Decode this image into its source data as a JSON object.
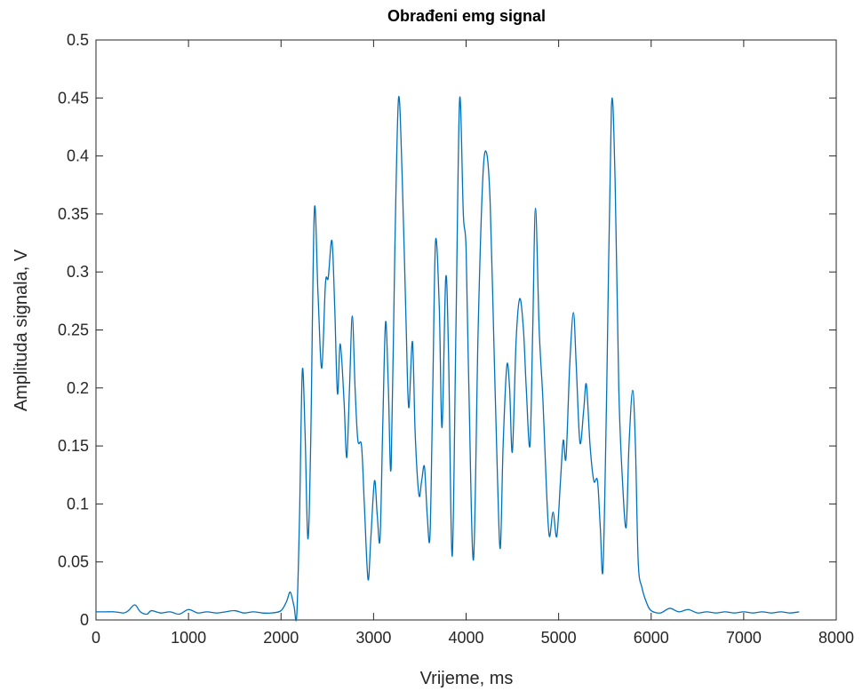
{
  "chart_data": {
    "type": "line",
    "title": "Obrađeni emg signal",
    "xlabel": "Vrijeme, ms",
    "ylabel": "Amplituda signala, V",
    "xlim": [
      0,
      8000
    ],
    "ylim": [
      0,
      0.5
    ],
    "xticks": [
      0,
      1000,
      2000,
      3000,
      4000,
      5000,
      6000,
      7000,
      8000
    ],
    "yticks": [
      0,
      0.05,
      0.1,
      0.15,
      0.2,
      0.25,
      0.3,
      0.35,
      0.4,
      0.45,
      0.5
    ],
    "grid": false,
    "series": [
      {
        "name": "emg",
        "color": "#0072bd",
        "x": [
          0,
          100,
          200,
          300,
          350,
          420,
          480,
          550,
          600,
          700,
          800,
          900,
          1000,
          1100,
          1200,
          1300,
          1400,
          1500,
          1600,
          1700,
          1800,
          1900,
          2000,
          2060,
          2100,
          2140,
          2170,
          2200,
          2230,
          2260,
          2290,
          2320,
          2360,
          2400,
          2440,
          2480,
          2510,
          2550,
          2580,
          2610,
          2640,
          2680,
          2710,
          2740,
          2770,
          2800,
          2830,
          2870,
          2900,
          2940,
          2970,
          3010,
          3040,
          3070,
          3100,
          3130,
          3160,
          3190,
          3230,
          3270,
          3310,
          3350,
          3380,
          3420,
          3450,
          3490,
          3520,
          3550,
          3580,
          3610,
          3640,
          3670,
          3710,
          3740,
          3780,
          3810,
          3850,
          3890,
          3930,
          3970,
          4000,
          4030,
          4080,
          4130,
          4180,
          4220,
          4260,
          4300,
          4340,
          4370,
          4400,
          4440,
          4470,
          4500,
          4540,
          4580,
          4620,
          4650,
          4690,
          4720,
          4750,
          4790,
          4830,
          4870,
          4900,
          4940,
          4980,
          5020,
          5050,
          5080,
          5120,
          5160,
          5190,
          5230,
          5270,
          5300,
          5340,
          5380,
          5420,
          5450,
          5480,
          5520,
          5570,
          5610,
          5650,
          5690,
          5730,
          5760,
          5800,
          5830,
          5860,
          5900,
          5950,
          6000,
          6100,
          6200,
          6300,
          6400,
          6500,
          6600,
          6700,
          6800,
          6900,
          7000,
          7100,
          7200,
          7300,
          7400,
          7500,
          7600
        ],
        "values": [
          0.007,
          0.007,
          0.007,
          0.006,
          0.008,
          0.013,
          0.007,
          0.005,
          0.008,
          0.006,
          0.007,
          0.005,
          0.009,
          0.006,
          0.007,
          0.006,
          0.007,
          0.008,
          0.006,
          0.007,
          0.006,
          0.006,
          0.008,
          0.016,
          0.024,
          0.012,
          0.004,
          0.09,
          0.215,
          0.16,
          0.07,
          0.15,
          0.353,
          0.28,
          0.217,
          0.29,
          0.295,
          0.327,
          0.27,
          0.195,
          0.238,
          0.19,
          0.14,
          0.2,
          0.262,
          0.2,
          0.155,
          0.15,
          0.1,
          0.035,
          0.07,
          0.12,
          0.09,
          0.07,
          0.17,
          0.257,
          0.2,
          0.132,
          0.32,
          0.45,
          0.38,
          0.26,
          0.183,
          0.24,
          0.16,
          0.108,
          0.12,
          0.132,
          0.09,
          0.073,
          0.2,
          0.327,
          0.27,
          0.166,
          0.295,
          0.23,
          0.055,
          0.25,
          0.449,
          0.35,
          0.32,
          0.2,
          0.052,
          0.25,
          0.38,
          0.403,
          0.36,
          0.24,
          0.12,
          0.062,
          0.15,
          0.219,
          0.2,
          0.145,
          0.24,
          0.277,
          0.25,
          0.2,
          0.15,
          0.25,
          0.355,
          0.25,
          0.19,
          0.11,
          0.072,
          0.093,
          0.072,
          0.12,
          0.155,
          0.14,
          0.22,
          0.265,
          0.22,
          0.153,
          0.18,
          0.203,
          0.15,
          0.12,
          0.12,
          0.08,
          0.045,
          0.2,
          0.441,
          0.38,
          0.2,
          0.12,
          0.08,
          0.15,
          0.198,
          0.15,
          0.05,
          0.028,
          0.015,
          0.008,
          0.006,
          0.01,
          0.007,
          0.009,
          0.006,
          0.007,
          0.006,
          0.007,
          0.006,
          0.007,
          0.006,
          0.007,
          0.006,
          0.007,
          0.006,
          0.007
        ]
      }
    ]
  }
}
